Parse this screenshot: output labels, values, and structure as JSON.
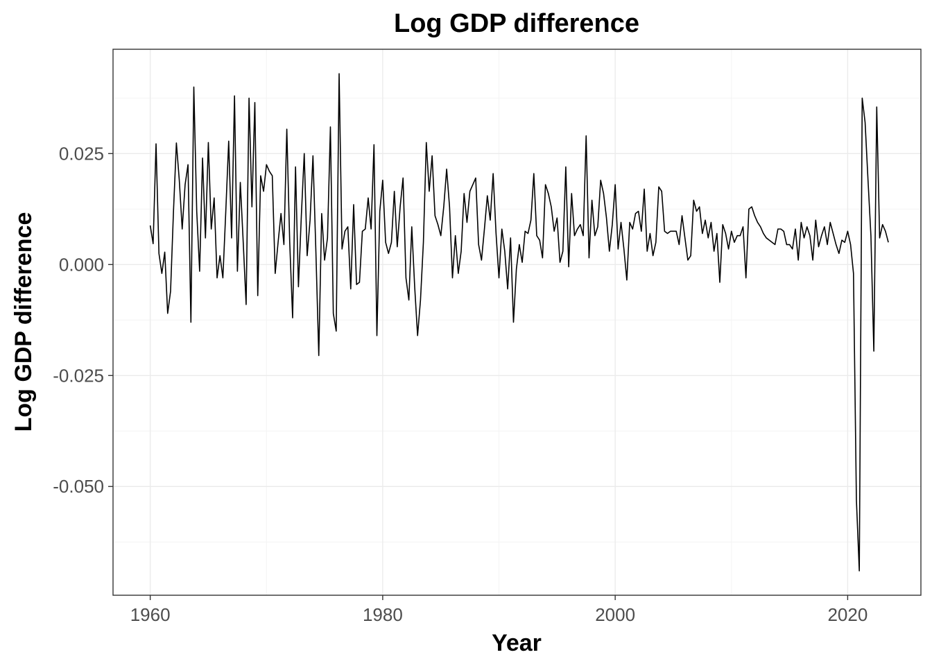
{
  "chart_data": {
    "type": "line",
    "title": "Log GDP difference",
    "xlabel": "Year",
    "ylabel": "Log GDP difference",
    "xlim": [
      1956.8,
      2026.3
    ],
    "ylim": [
      -0.0745,
      0.0485
    ],
    "x_ticks": [
      1960,
      1980,
      2000,
      2020
    ],
    "x_tick_labels": [
      "1960",
      "1980",
      "2000",
      "2020"
    ],
    "y_ticks": [
      -0.05,
      -0.025,
      0.0,
      0.025
    ],
    "y_tick_labels": [
      "-0.050",
      "-0.025",
      "0.000",
      "0.025"
    ],
    "grid": true,
    "legend": "none",
    "series": [
      {
        "x_start": 1960.0,
        "x_step": 0.25,
        "values": [
          0.0088,
          0.0047,
          0.0272,
          0.0025,
          -0.002,
          0.0028,
          -0.011,
          -0.006,
          0.012,
          0.0274,
          0.019,
          0.008,
          0.018,
          0.0225,
          -0.013,
          0.04,
          0.012,
          -0.0015,
          0.024,
          0.006,
          0.0275,
          0.008,
          0.015,
          -0.003,
          0.002,
          -0.003,
          0.012,
          0.0278,
          0.006,
          0.038,
          -0.0015,
          0.0185,
          0.005,
          -0.009,
          0.0375,
          0.013,
          0.0365,
          -0.007,
          0.02,
          0.0165,
          0.0225,
          0.021,
          0.02,
          -0.002,
          0.005,
          0.0115,
          0.0045,
          0.0305,
          0.005,
          -0.012,
          0.022,
          -0.005,
          0.011,
          0.025,
          0.002,
          0.01,
          0.0245,
          0.003,
          -0.0205,
          0.0115,
          0.001,
          0.006,
          0.031,
          -0.011,
          -0.015,
          0.043,
          0.0035,
          0.0075,
          0.0085,
          -0.0055,
          0.0135,
          -0.0045,
          -0.004,
          0.0075,
          0.008,
          0.015,
          0.008,
          0.027,
          -0.016,
          0.012,
          0.019,
          0.005,
          0.0025,
          0.005,
          0.0165,
          0.004,
          0.013,
          0.0195,
          -0.003,
          -0.008,
          0.0085,
          -0.005,
          -0.016,
          -0.008,
          0.005,
          0.0275,
          0.0165,
          0.0245,
          0.011,
          0.009,
          0.0065,
          0.013,
          0.0215,
          0.013,
          -0.003,
          0.0065,
          -0.002,
          0.003,
          0.016,
          0.0095,
          0.0165,
          0.018,
          0.0195,
          0.0045,
          0.001,
          0.008,
          0.0155,
          0.01,
          0.0205,
          0.007,
          -0.003,
          0.008,
          0.003,
          -0.0055,
          0.006,
          -0.013,
          -0.001,
          0.0045,
          0.0005,
          0.0075,
          0.007,
          0.01,
          0.0205,
          0.0065,
          0.0055,
          0.0015,
          0.018,
          0.016,
          0.013,
          0.0075,
          0.0105,
          0.0005,
          0.003,
          0.022,
          -0.0005,
          0.016,
          0.0065,
          0.008,
          0.009,
          0.0065,
          0.029,
          0.0015,
          0.0145,
          0.0065,
          0.0085,
          0.019,
          0.016,
          0.0105,
          0.003,
          0.009,
          0.018,
          0.0035,
          0.0095,
          0.0035,
          -0.0035,
          0.0095,
          0.008,
          0.0115,
          0.012,
          0.0075,
          0.017,
          0.003,
          0.007,
          0.002,
          0.005,
          0.0175,
          0.0165,
          0.0075,
          0.007,
          0.0075,
          0.0075,
          0.0075,
          0.0045,
          0.011,
          0.006,
          0.001,
          0.002,
          0.0145,
          0.012,
          0.013,
          0.007,
          0.01,
          0.006,
          0.0095,
          0.003,
          0.007,
          -0.004,
          0.009,
          0.007,
          0.0035,
          0.0075,
          0.005,
          0.0065,
          0.0065,
          0.0085,
          -0.003,
          0.0125,
          0.013,
          0.011,
          0.0095,
          0.0085,
          0.007,
          0.006,
          0.0055,
          0.005,
          0.0045,
          0.008,
          0.008,
          0.0075,
          0.0045,
          0.0045,
          0.0035,
          0.008,
          0.001,
          0.0095,
          0.006,
          0.0085,
          0.0065,
          0.001,
          0.01,
          0.004,
          0.0065,
          0.0085,
          0.0045,
          0.0095,
          0.007,
          0.0045,
          0.0025,
          0.0055,
          0.005,
          0.0075,
          0.0045,
          -0.002,
          -0.053,
          -0.069,
          0.0375,
          0.032,
          0.019,
          0.0065,
          -0.0195,
          0.0355,
          0.006,
          0.009,
          0.0075,
          0.005
        ]
      }
    ]
  }
}
